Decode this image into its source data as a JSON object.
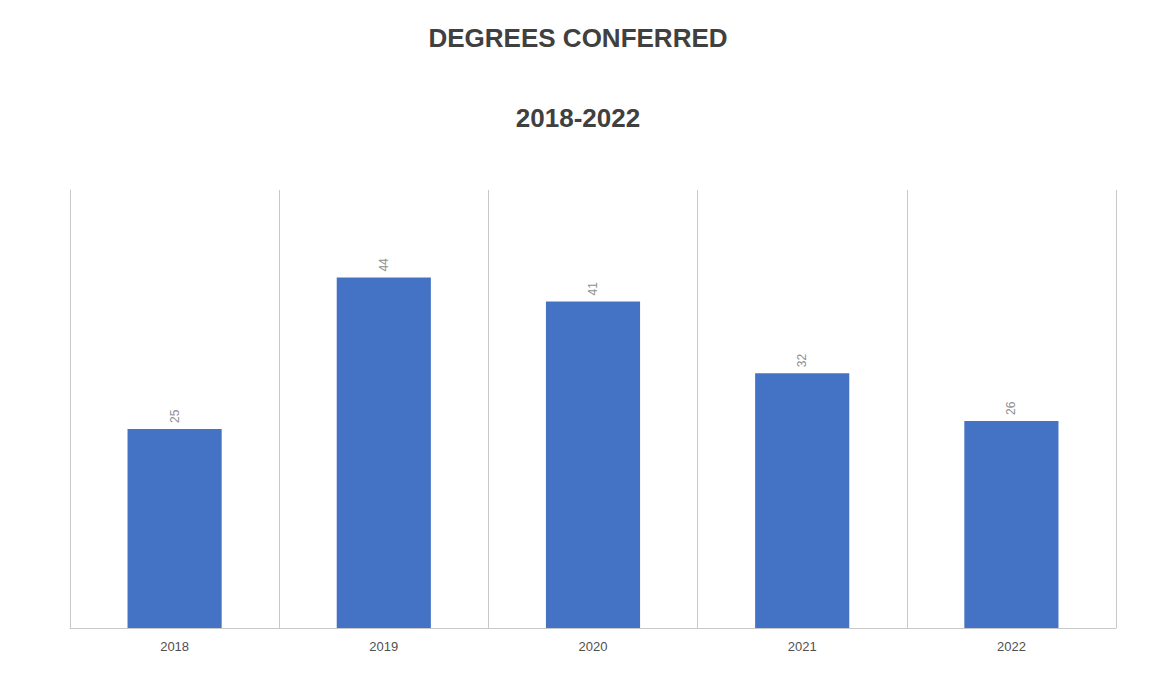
{
  "chart_data": {
    "type": "bar",
    "title": "DEGREES CONFERRED",
    "subtitle": "2018-2022",
    "categories": [
      "2018",
      "2019",
      "2020",
      "2021",
      "2022"
    ],
    "values": [
      25,
      44,
      41,
      32,
      26
    ],
    "color": "#4472C4",
    "ylim": [
      0,
      55
    ],
    "grid": "x",
    "data_labels": true,
    "tick_labels": "x"
  }
}
